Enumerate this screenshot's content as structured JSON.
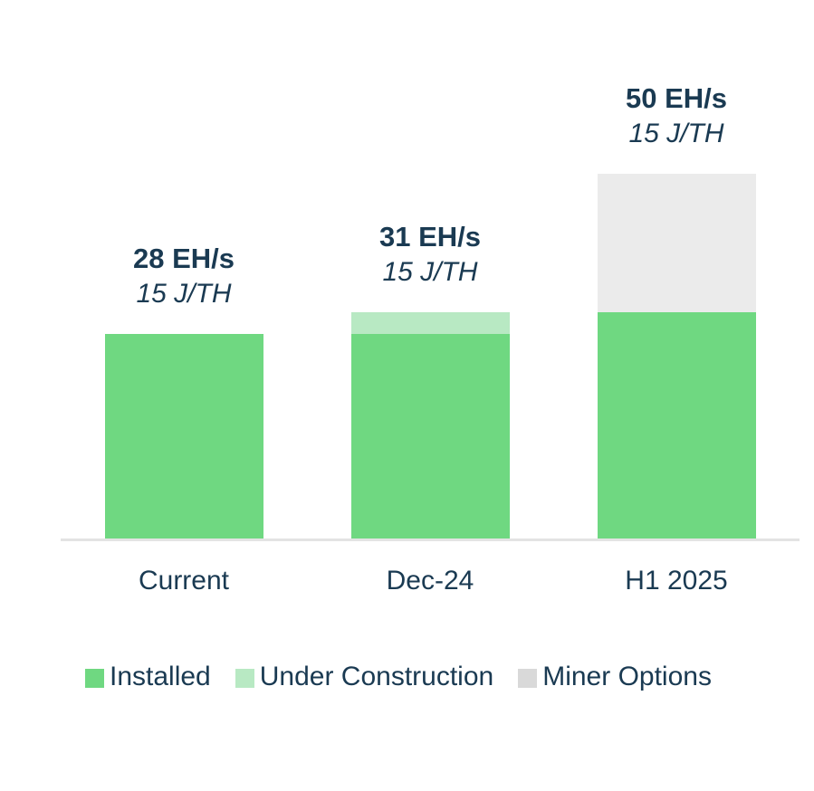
{
  "chart_data": {
    "type": "bar",
    "stacked": true,
    "categories": [
      "Current",
      "Dec-24",
      "H1 2025"
    ],
    "series": [
      {
        "name": "Installed",
        "values": [
          28,
          28,
          31
        ]
      },
      {
        "name": "Under Construction",
        "values": [
          0,
          3,
          0
        ]
      },
      {
        "name": "Miner Options",
        "values": [
          0,
          0,
          19
        ]
      }
    ],
    "bar_labels": [
      {
        "total": "28 EH/s",
        "efficiency": "15 J/TH"
      },
      {
        "total": "31 EH/s",
        "efficiency": "15 J/TH"
      },
      {
        "total": "50 EH/s",
        "efficiency": "15 J/TH"
      }
    ],
    "ylim": [
      0,
      50
    ],
    "grid": false,
    "legend_position": "bottom"
  },
  "colors": {
    "installed": "#6fd881",
    "under_construction": "#b8e9c3",
    "miner_options_bar": "#ebebeb",
    "miner_options_legend": "#d9d9d9",
    "text": "#1a3a52",
    "axis_line": "#e3e3e3"
  },
  "legend": {
    "items": [
      {
        "label": "Installed",
        "color": "#6fd881"
      },
      {
        "label": "Under Construction",
        "color": "#b8e9c3"
      },
      {
        "label": "Miner Options",
        "color": "#d9d9d9"
      }
    ]
  }
}
